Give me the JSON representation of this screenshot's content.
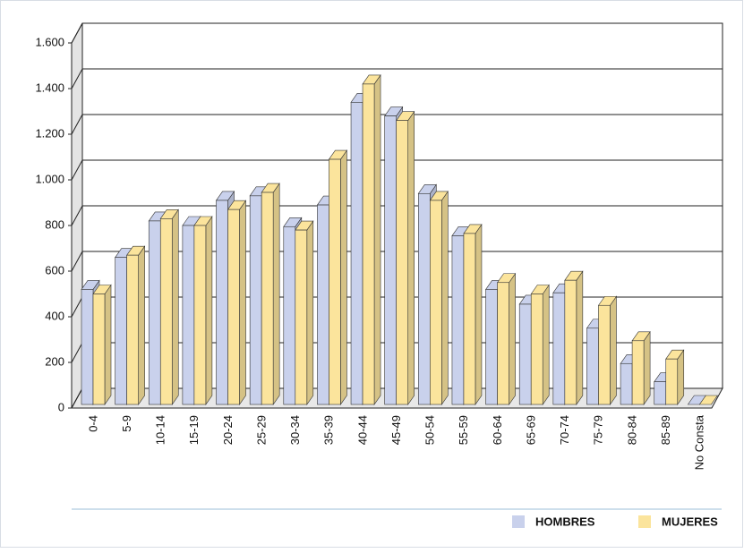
{
  "chart_data": {
    "type": "bar3d",
    "categories": [
      "0-4",
      "5-9",
      "10-14",
      "15-19",
      "20-24",
      "25-29",
      "30-34",
      "35-39",
      "40-44",
      "45-49",
      "50-54",
      "55-59",
      "60-64",
      "65-69",
      "70-74",
      "75-79",
      "80-84",
      "85-89",
      "No Consta"
    ],
    "series": [
      {
        "name": "HOMBRES",
        "color": "#c9d1ec",
        "values": [
          520,
          660,
          820,
          800,
          910,
          930,
          795,
          890,
          1340,
          1280,
          940,
          755,
          520,
          455,
          505,
          350,
          195,
          115,
          0
        ]
      },
      {
        "name": "MUJERES",
        "color": "#fbe49c",
        "values": [
          500,
          670,
          830,
          800,
          870,
          945,
          780,
          1090,
          1420,
          1260,
          910,
          765,
          550,
          500,
          560,
          450,
          295,
          215,
          0
        ]
      }
    ],
    "ylim": [
      0,
      1600
    ],
    "yticks": [
      0,
      200,
      400,
      600,
      800,
      {
        "value": 1000,
        "label": "1.000"
      },
      {
        "value": 1200,
        "label": "1.200"
      },
      {
        "value": 1400,
        "label": "1.400"
      },
      {
        "value": 1600,
        "label": "1.600"
      }
    ],
    "grid": true,
    "legend": "bottom-right"
  }
}
